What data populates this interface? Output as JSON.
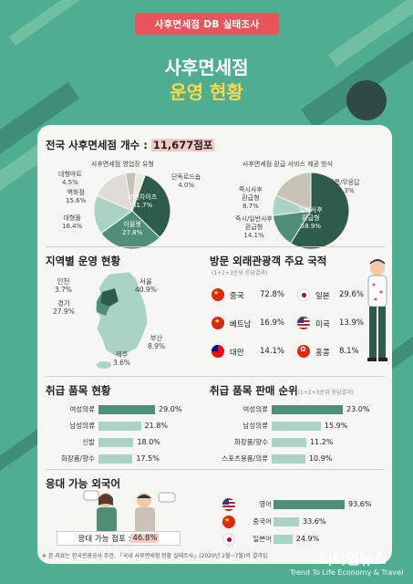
{
  "header": {
    "ribbon": "사후면세점 DB 실태조사",
    "title_line1": "사후면세점",
    "title_line2": "운영 현황"
  },
  "colors": {
    "background": "#4fae91",
    "accent_red": "#e8555d",
    "title_yellow": "#ffd84a",
    "dark_green": "#2e5c4a",
    "mid_green": "#4e8f76",
    "light_green": "#a9d3c2",
    "gray": "#c8c2b7",
    "card": "#f6f6f2"
  },
  "stores": {
    "title_prefix": "전국 사후면세점 개수 : ",
    "title_value": "11,677점포"
  },
  "chart_data": [
    {
      "type": "pie",
      "title": "사후면세점 영업장 유형",
      "categories": [
        "프랜차이즈",
        "아울렛",
        "대형몰",
        "백화점",
        "대형마트",
        "단독로드숍"
      ],
      "values": [
        31.7,
        27.8,
        16.4,
        15.6,
        4.5,
        4.0
      ],
      "colors": [
        "#2e5c4a",
        "#4e8f76",
        "#a9d3c2",
        "#dddcd5",
        "#c8c2b7",
        "#e9e7e1"
      ],
      "labels": [
        "프랜차이즈\n31.7%",
        "아울렛\n27.8%",
        "대형몰\n16.4%",
        "백화점\n15.6%",
        "대형마트\n4.5%",
        "단독로드숍\n4.0%"
      ]
    },
    {
      "type": "pie",
      "title": "사후면세점 환급 서비스 제공 방식",
      "categories": [
        "일반사후 환급형",
        "즉시/일반사후 환급형",
        "즉시사후 환급형",
        "모름/무응답"
      ],
      "values": [
        58.9,
        14.1,
        8.7,
        18.3
      ],
      "colors": [
        "#2e5c4a",
        "#4e8f76",
        "#a9d3c2",
        "#c8c2b7"
      ],
      "labels": [
        "일반사후\n환급형\n58.9%",
        "즉시/일반사후\n환급형\n14.1%",
        "즉시사후\n환급형\n8.7%",
        "모름/무응답\n18.3%"
      ]
    },
    {
      "type": "table",
      "title": "지역별 운영 현황",
      "categories": [
        "서울",
        "인천",
        "경기",
        "부산",
        "제주"
      ],
      "values": [
        40.9,
        3.7,
        27.9,
        8.9,
        3.6
      ],
      "labels": [
        "서울\n40.9%",
        "인천\n3.7%",
        "경기\n27.9%",
        "부산\n8.9%",
        "제주\n3.6%"
      ]
    },
    {
      "type": "table",
      "title": "방문 외래관광객 주요 국적",
      "subtitle": "(1+2+3순위 응답결과)",
      "categories": [
        "중국",
        "일본",
        "베트남",
        "미국",
        "대만",
        "홍콩"
      ],
      "values": [
        72.8,
        29.6,
        16.9,
        13.9,
        14.1,
        8.1
      ],
      "labels": [
        "72.8%",
        "29.6%",
        "16.9%",
        "13.9%",
        "14.1%",
        "8.1%"
      ]
    },
    {
      "type": "bar",
      "title": "취급 품목 현황",
      "categories": [
        "여성의류",
        "남성의류",
        "신발",
        "화장품/향수"
      ],
      "values": [
        29.0,
        21.8,
        18.0,
        17.5
      ],
      "labels": [
        "29.0%",
        "21.8%",
        "18.0%",
        "17.5%"
      ],
      "colors": [
        "#4e8f76",
        "#a9d3c2",
        "#a9d3c2",
        "#a9d3c2"
      ]
    },
    {
      "type": "bar",
      "title": "취급 품목 판매 순위",
      "subtitle": "(1+2+3순위 응답결과)",
      "categories": [
        "여성의류",
        "남성의류",
        "화장품/향수",
        "스포츠용품/의류"
      ],
      "values": [
        23.0,
        15.9,
        11.2,
        10.9
      ],
      "labels": [
        "23.0%",
        "15.9%",
        "11.2%",
        "10.9%"
      ],
      "colors": [
        "#4e8f76",
        "#a9d3c2",
        "#a9d3c2",
        "#a9d3c2"
      ]
    },
    {
      "type": "bar",
      "title": "응대 가능 외국어",
      "categories": [
        "영어",
        "중국어",
        "일본어"
      ],
      "values": [
        93.6,
        33.6,
        24.9
      ],
      "labels": [
        "93.6%",
        "33.6%",
        "24.9%"
      ],
      "colors": [
        "#4e8f76",
        "#a9d3c2",
        "#a9d3c2"
      ]
    }
  ],
  "response": {
    "label": "응대 가능 점포 : ",
    "value": "46.8%"
  },
  "footer": {
    "note": "※ 본 자료는 한국관광공사 주관, 「국내 사후면세점 현황 실태조사」(2020년 2월~7월)의 결과임",
    "watermark": "티티엘뉴스",
    "watermark_sub": "Trend To Life Economy & Travel"
  },
  "icons": [
    "flag-china-icon",
    "flag-japan-icon",
    "flag-vietnam-icon",
    "flag-usa-icon",
    "flag-taiwan-icon",
    "flag-hongkong-icon",
    "korea-map-icon",
    "tourist-illustration-icon",
    "conversation-illustration-icon"
  ]
}
